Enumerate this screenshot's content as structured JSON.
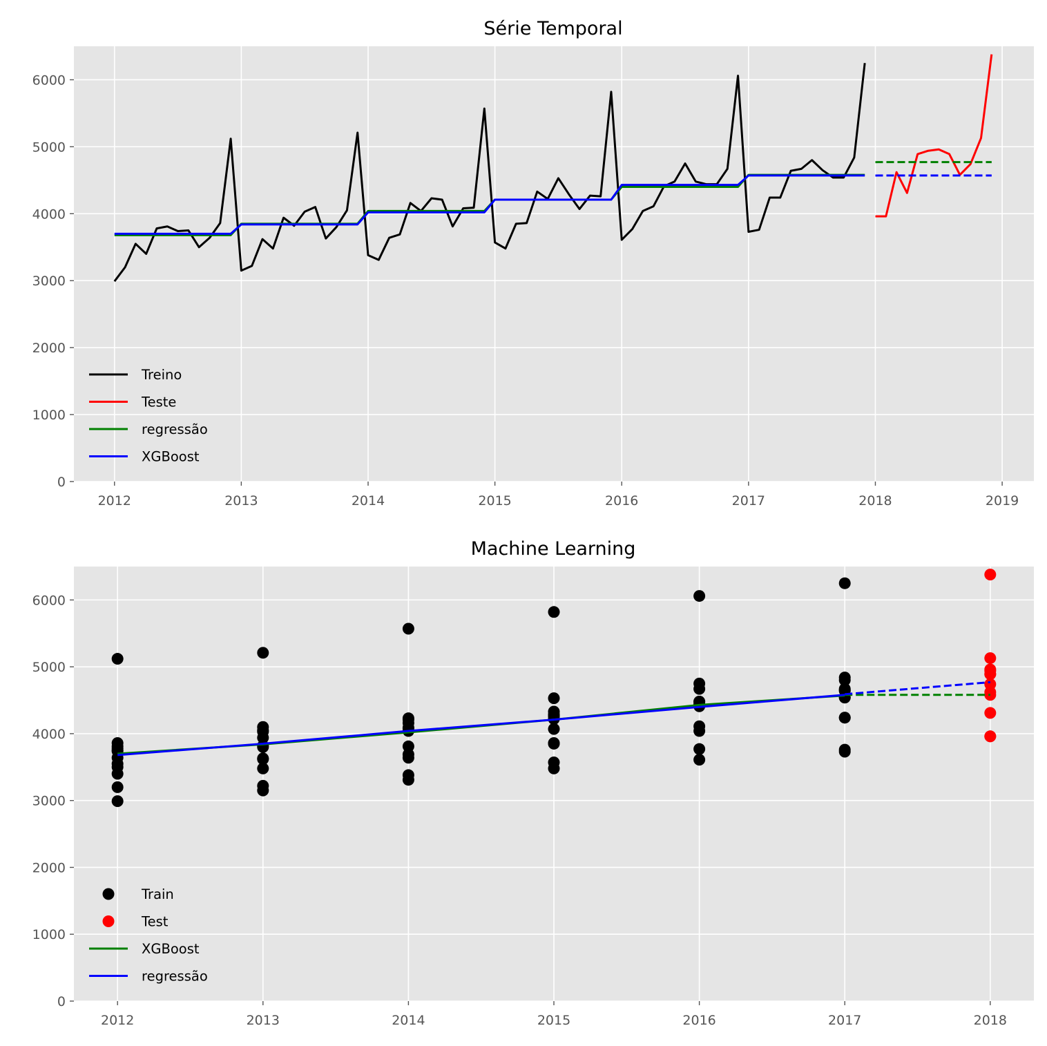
{
  "chart_data": [
    {
      "type": "line",
      "title": "Série Temporal",
      "xlabel": "",
      "ylabel": "",
      "xlim": [
        2011.68,
        2019.25
      ],
      "ylim": [
        0,
        6500
      ],
      "xticks": [
        2012,
        2013,
        2014,
        2015,
        2016,
        2017,
        2018,
        2019
      ],
      "yticks": [
        0,
        1000,
        2000,
        3000,
        4000,
        5000,
        6000
      ],
      "grid": true,
      "legend_position": "lower-left",
      "legend": [
        "Treino",
        "Teste",
        "regressão",
        "XGBoost"
      ],
      "series": [
        {
          "name": "Treino",
          "color": "#000000",
          "style": "solid",
          "x_start": 2012,
          "x_step": 0.0833333,
          "values": [
            2990,
            3200,
            3550,
            3400,
            3780,
            3810,
            3740,
            3750,
            3500,
            3640,
            3860,
            5120,
            3150,
            3220,
            3620,
            3480,
            3940,
            3820,
            4030,
            4100,
            3630,
            3800,
            4050,
            5210,
            3380,
            3310,
            3640,
            3690,
            4160,
            4040,
            4230,
            4210,
            3810,
            4080,
            4090,
            5570,
            3570,
            3480,
            3850,
            3860,
            4330,
            4220,
            4530,
            4290,
            4070,
            4270,
            4260,
            5820,
            3610,
            3770,
            4040,
            4110,
            4410,
            4480,
            4750,
            4480,
            4440,
            4440,
            4670,
            6060,
            3730,
            3760,
            4240,
            4240,
            4640,
            4670,
            4800,
            4650,
            4540,
            4540,
            4840,
            6250
          ]
        },
        {
          "name": "Teste",
          "color": "#ff0000",
          "style": "solid",
          "x_start": 2018,
          "x_step": 0.0833333,
          "values": [
            3960,
            3960,
            4620,
            4310,
            4890,
            4940,
            4960,
            4890,
            4580,
            4740,
            5130,
            6380
          ]
        },
        {
          "name": "regressão",
          "color": "#008000",
          "style": "solid",
          "x_start": 2012,
          "x_step": 0.0833333,
          "values": [
            3680,
            3680,
            3680,
            3680,
            3680,
            3680,
            3680,
            3680,
            3680,
            3680,
            3680,
            3680,
            3850,
            3850,
            3850,
            3850,
            3850,
            3850,
            3850,
            3850,
            3850,
            3850,
            3850,
            3850,
            4040,
            4040,
            4040,
            4040,
            4040,
            4040,
            4040,
            4040,
            4040,
            4040,
            4040,
            4040,
            4210,
            4210,
            4210,
            4210,
            4210,
            4210,
            4210,
            4210,
            4210,
            4210,
            4210,
            4210,
            4400,
            4400,
            4400,
            4400,
            4400,
            4400,
            4400,
            4400,
            4400,
            4400,
            4400,
            4400,
            4580,
            4580,
            4580,
            4580,
            4580,
            4580,
            4580,
            4580,
            4580,
            4580,
            4580,
            4580
          ]
        },
        {
          "name": "XGBoost",
          "color": "#0000ff",
          "style": "solid",
          "x_start": 2012,
          "x_step": 0.0833333,
          "values": [
            3700,
            3700,
            3700,
            3700,
            3700,
            3700,
            3700,
            3700,
            3700,
            3700,
            3700,
            3700,
            3840,
            3840,
            3840,
            3840,
            3840,
            3840,
            3840,
            3840,
            3840,
            3840,
            3840,
            3840,
            4020,
            4020,
            4020,
            4020,
            4020,
            4020,
            4020,
            4020,
            4020,
            4020,
            4020,
            4020,
            4210,
            4210,
            4210,
            4210,
            4210,
            4210,
            4210,
            4210,
            4210,
            4210,
            4210,
            4210,
            4430,
            4430,
            4430,
            4430,
            4430,
            4430,
            4430,
            4430,
            4430,
            4430,
            4430,
            4430,
            4570,
            4570,
            4570,
            4570,
            4570,
            4570,
            4570,
            4570,
            4570,
            4570,
            4570,
            4570
          ]
        },
        {
          "name": "",
          "color": "#008000",
          "style": "dashed",
          "x": [
            2018,
            2018.917
          ],
          "values": [
            4770,
            4770
          ]
        },
        {
          "name": "",
          "color": "#0000ff",
          "style": "dashed",
          "x": [
            2018,
            2018.917
          ],
          "values": [
            4570,
            4570
          ]
        }
      ]
    },
    {
      "type": "scatter",
      "title": "Machine Learning",
      "xlabel": "",
      "ylabel": "",
      "xlim": [
        2011.7,
        2018.3
      ],
      "ylim": [
        0,
        6500
      ],
      "xticks": [
        2012,
        2013,
        2014,
        2015,
        2016,
        2017,
        2018
      ],
      "yticks": [
        0,
        1000,
        2000,
        3000,
        4000,
        5000,
        6000
      ],
      "grid": true,
      "legend_position": "lower-left",
      "legend": [
        "Train",
        "Test",
        "XGBoost",
        "regressão"
      ],
      "scatter": [
        {
          "name": "Train",
          "color": "#000000",
          "points": [
            [
              2012,
              2990
            ],
            [
              2012,
              3200
            ],
            [
              2012,
              3400
            ],
            [
              2012,
              3500
            ],
            [
              2012,
              3550
            ],
            [
              2012,
              3640
            ],
            [
              2012,
              3740
            ],
            [
              2012,
              3750
            ],
            [
              2012,
              3780
            ],
            [
              2012,
              3810
            ],
            [
              2012,
              3860
            ],
            [
              2012,
              5120
            ],
            [
              2013,
              3150
            ],
            [
              2013,
              3220
            ],
            [
              2013,
              3480
            ],
            [
              2013,
              3620
            ],
            [
              2013,
              3630
            ],
            [
              2013,
              3800
            ],
            [
              2013,
              3820
            ],
            [
              2013,
              3940
            ],
            [
              2013,
              4030
            ],
            [
              2013,
              4050
            ],
            [
              2013,
              4100
            ],
            [
              2013,
              5210
            ],
            [
              2014,
              3310
            ],
            [
              2014,
              3380
            ],
            [
              2014,
              3640
            ],
            [
              2014,
              3690
            ],
            [
              2014,
              3810
            ],
            [
              2014,
              4040
            ],
            [
              2014,
              4080
            ],
            [
              2014,
              4090
            ],
            [
              2014,
              4160
            ],
            [
              2014,
              4210
            ],
            [
              2014,
              4230
            ],
            [
              2014,
              5570
            ],
            [
              2015,
              3480
            ],
            [
              2015,
              3570
            ],
            [
              2015,
              3850
            ],
            [
              2015,
              3860
            ],
            [
              2015,
              4070
            ],
            [
              2015,
              4220
            ],
            [
              2015,
              4260
            ],
            [
              2015,
              4270
            ],
            [
              2015,
              4290
            ],
            [
              2015,
              4330
            ],
            [
              2015,
              4530
            ],
            [
              2015,
              5820
            ],
            [
              2016,
              3610
            ],
            [
              2016,
              3770
            ],
            [
              2016,
              4040
            ],
            [
              2016,
              4110
            ],
            [
              2016,
              4410
            ],
            [
              2016,
              4440
            ],
            [
              2016,
              4440
            ],
            [
              2016,
              4480
            ],
            [
              2016,
              4480
            ],
            [
              2016,
              4670
            ],
            [
              2016,
              4750
            ],
            [
              2016,
              6060
            ],
            [
              2017,
              3730
            ],
            [
              2017,
              3760
            ],
            [
              2017,
              4240
            ],
            [
              2017,
              4240
            ],
            [
              2017,
              4540
            ],
            [
              2017,
              4540
            ],
            [
              2017,
              4640
            ],
            [
              2017,
              4650
            ],
            [
              2017,
              4670
            ],
            [
              2017,
              4800
            ],
            [
              2017,
              4840
            ],
            [
              2017,
              6250
            ]
          ]
        },
        {
          "name": "Test",
          "color": "#ff0000",
          "points": [
            [
              2018,
              3960
            ],
            [
              2018,
              3960
            ],
            [
              2018,
              4310
            ],
            [
              2018,
              4580
            ],
            [
              2018,
              4620
            ],
            [
              2018,
              4740
            ],
            [
              2018,
              4890
            ],
            [
              2018,
              4890
            ],
            [
              2018,
              4940
            ],
            [
              2018,
              4960
            ],
            [
              2018,
              5130
            ],
            [
              2018,
              6380
            ]
          ]
        }
      ],
      "series": [
        {
          "name": "XGBoost",
          "color": "#008000",
          "style": "solid",
          "x": [
            2012,
            2013,
            2014,
            2015,
            2016,
            2017
          ],
          "values": [
            3700,
            3840,
            4020,
            4210,
            4430,
            4570
          ]
        },
        {
          "name": "regressão",
          "color": "#0000ff",
          "style": "solid",
          "x": [
            2012,
            2013,
            2014,
            2015,
            2016,
            2017
          ],
          "values": [
            3680,
            3850,
            4040,
            4210,
            4400,
            4580
          ]
        },
        {
          "name": "",
          "color": "#008000",
          "style": "dashed",
          "x": [
            2017,
            2018
          ],
          "values": [
            4580,
            4580
          ]
        },
        {
          "name": "",
          "color": "#0000ff",
          "style": "dashed",
          "x": [
            2017,
            2018
          ],
          "values": [
            4590,
            4770
          ]
        }
      ]
    }
  ]
}
